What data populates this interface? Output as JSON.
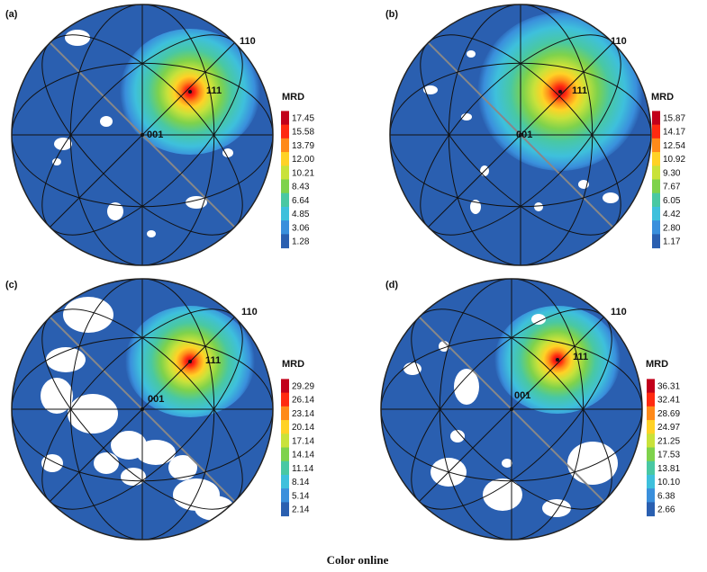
{
  "figure": {
    "caption": "Color online"
  },
  "chart_data": [
    {
      "type": "pole_figure",
      "panel": "(a)",
      "legend_title": "MRD",
      "poles": [
        "110",
        "111",
        "001"
      ],
      "colorbar_ticks": [
        "17.45",
        "15.58",
        "13.79",
        "12.00",
        "10.21",
        "8.43",
        "6.64",
        "4.85",
        "3.06",
        "1.28"
      ],
      "max_intensity": 17.45,
      "min_intensity": 1.28
    },
    {
      "type": "pole_figure",
      "panel": "(b)",
      "legend_title": "MRD",
      "poles": [
        "110",
        "111",
        "001"
      ],
      "colorbar_ticks": [
        "15.87",
        "14.17",
        "12.54",
        "10.92",
        "9.30",
        "7.67",
        "6.05",
        "4.42",
        "2.80",
        "1.17"
      ],
      "max_intensity": 15.87,
      "min_intensity": 1.17
    },
    {
      "type": "pole_figure",
      "panel": "(c)",
      "legend_title": "MRD",
      "poles": [
        "110",
        "111",
        "001"
      ],
      "colorbar_ticks": [
        "29.29",
        "26.14",
        "23.14",
        "20.14",
        "17.14",
        "14.14",
        "11.14",
        "8.14",
        "5.14",
        "2.14"
      ],
      "max_intensity": 29.29,
      "min_intensity": 2.14
    },
    {
      "type": "pole_figure",
      "panel": "(d)",
      "legend_title": "MRD",
      "poles": [
        "110",
        "111",
        "001"
      ],
      "colorbar_ticks": [
        "36.31",
        "32.41",
        "28.69",
        "24.97",
        "21.25",
        "17.53",
        "13.81",
        "10.10",
        "6.38",
        "2.66"
      ],
      "max_intensity": 36.31,
      "min_intensity": 2.66
    }
  ],
  "colors": {
    "background": "#2a5fb0",
    "ramp": [
      "#2a5fb0",
      "#3a8fdc",
      "#3ec0dc",
      "#49c8a3",
      "#7ed24c",
      "#c9e23a",
      "#ffd226",
      "#ff8a1a",
      "#ff2a10",
      "#c2001a"
    ],
    "grid": "#111111",
    "outline": "#222222"
  }
}
